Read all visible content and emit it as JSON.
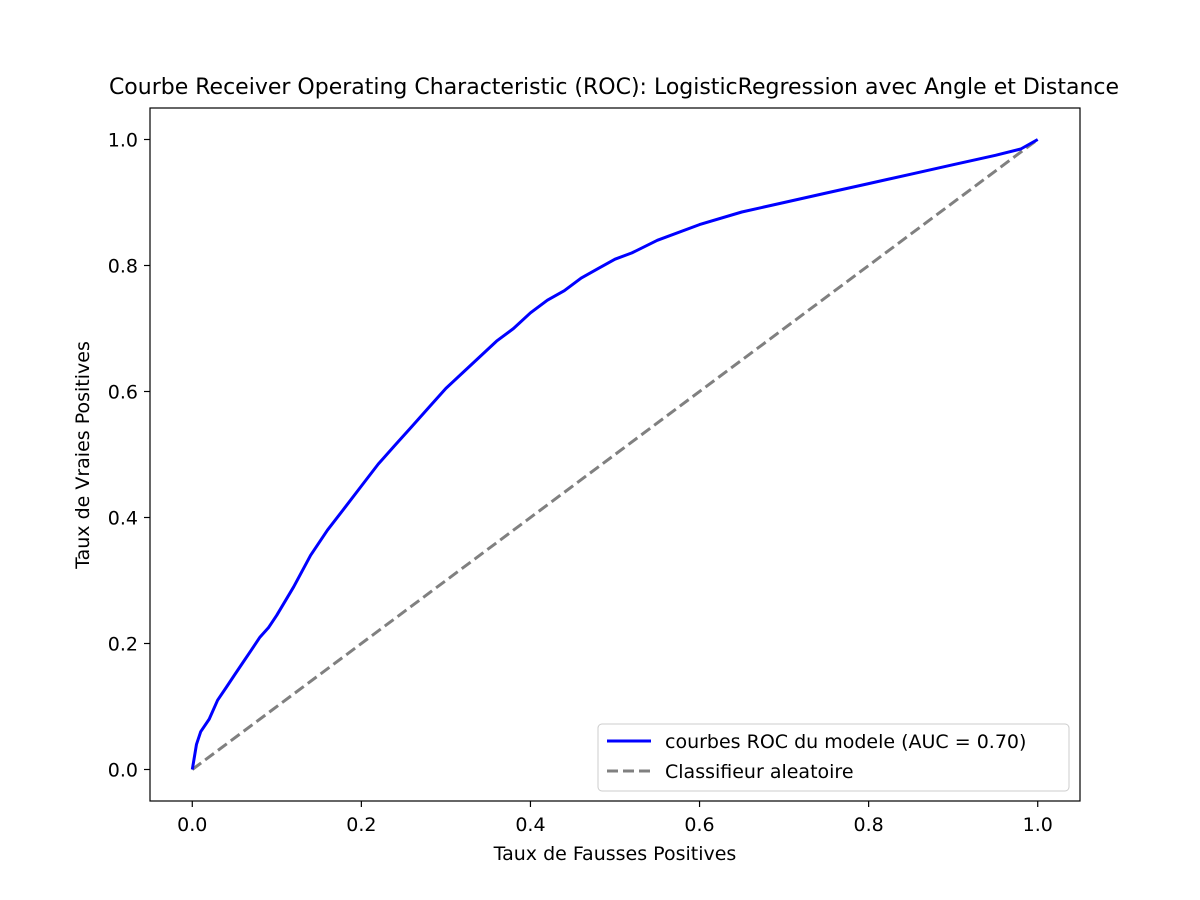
{
  "chart_data": {
    "type": "line",
    "title": "Courbe Receiver Operating Characteristic (ROC): LogisticRegression avec Angle et Distance",
    "xlabel": "Taux de Fausses Positives",
    "ylabel": "Taux de Vraies Positives",
    "xlim": [
      -0.05,
      1.05
    ],
    "ylim": [
      -0.05,
      1.05
    ],
    "xticks": [
      "0.0",
      "0.2",
      "0.4",
      "0.6",
      "0.8",
      "1.0"
    ],
    "yticks": [
      "0.0",
      "0.2",
      "0.4",
      "0.6",
      "0.8",
      "1.0"
    ],
    "grid": false,
    "legend_position": "lower-right",
    "series": [
      {
        "name": "courbes ROC du modele (AUC = 0.70)",
        "color": "#0000ff",
        "style": "solid",
        "x": [
          0.0,
          0.005,
          0.01,
          0.02,
          0.03,
          0.04,
          0.05,
          0.06,
          0.07,
          0.08,
          0.09,
          0.1,
          0.12,
          0.14,
          0.16,
          0.18,
          0.2,
          0.22,
          0.24,
          0.26,
          0.28,
          0.3,
          0.32,
          0.34,
          0.36,
          0.38,
          0.4,
          0.42,
          0.44,
          0.46,
          0.48,
          0.5,
          0.52,
          0.55,
          0.6,
          0.65,
          0.7,
          0.75,
          0.8,
          0.85,
          0.9,
          0.95,
          0.98,
          1.0
        ],
        "y": [
          0.0,
          0.04,
          0.06,
          0.08,
          0.11,
          0.13,
          0.15,
          0.17,
          0.19,
          0.21,
          0.225,
          0.245,
          0.29,
          0.34,
          0.38,
          0.415,
          0.45,
          0.485,
          0.515,
          0.545,
          0.575,
          0.605,
          0.63,
          0.655,
          0.68,
          0.7,
          0.725,
          0.745,
          0.76,
          0.78,
          0.795,
          0.81,
          0.82,
          0.84,
          0.865,
          0.885,
          0.9,
          0.915,
          0.93,
          0.945,
          0.96,
          0.975,
          0.985,
          1.0
        ]
      },
      {
        "name": "Classifieur aleatoire",
        "color": "#808080",
        "style": "dashed",
        "x": [
          0.0,
          1.0
        ],
        "y": [
          0.0,
          1.0
        ]
      }
    ]
  }
}
